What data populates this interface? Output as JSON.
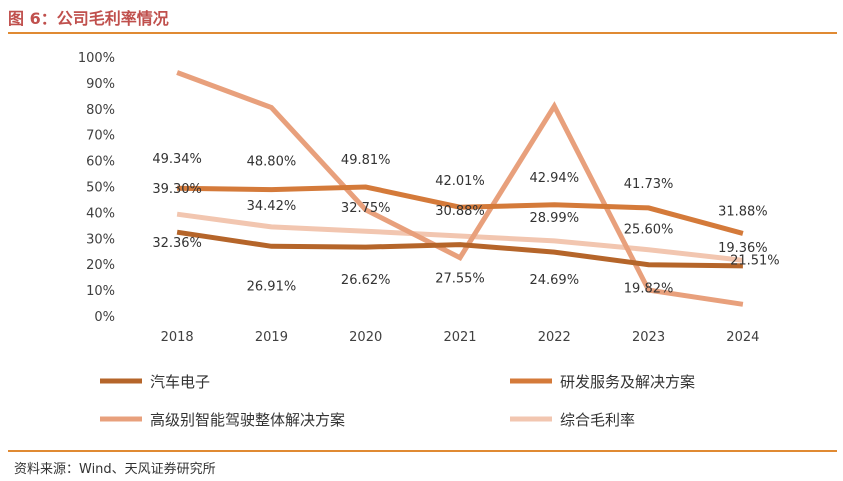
{
  "figure": {
    "title": "图 6：公司毛利率情况",
    "source": "资料来源：Wind、天风证券研究所"
  },
  "chart_data": {
    "type": "line",
    "title": "",
    "xlabel": "",
    "ylabel": "",
    "categories": [
      "2018",
      "2019",
      "2020",
      "2021",
      "2022",
      "2023",
      "2024"
    ],
    "ylim": [
      0,
      100
    ],
    "yticks": [
      "0%",
      "10%",
      "20%",
      "30%",
      "40%",
      "50%",
      "60%",
      "70%",
      "80%",
      "90%",
      "100%"
    ],
    "grid": false,
    "legend_position": "bottom",
    "series": [
      {
        "name": "汽车电子",
        "color": "#b5652a",
        "values": [
          32.36,
          26.91,
          26.62,
          27.55,
          24.69,
          19.82,
          19.36
        ],
        "labels": [
          "32.36%",
          "26.91%",
          "26.62%",
          "27.55%",
          "24.69%",
          "19.82%",
          "19.36%"
        ]
      },
      {
        "name": "研发服务及解决方案",
        "color": "#d47a3a",
        "values": [
          49.34,
          48.8,
          49.81,
          42.01,
          42.94,
          41.73,
          31.88
        ],
        "labels": [
          "49.34%",
          "48.80%",
          "49.81%",
          "42.01%",
          "42.94%",
          "41.73%",
          "31.88%"
        ]
      },
      {
        "name": "高级别智能驾驶整体解决方案",
        "color": "#e8a07c",
        "values": [
          94.0,
          80.5,
          41.0,
          22.5,
          81.0,
          10.0,
          4.5
        ],
        "labels": []
      },
      {
        "name": "综合毛利率",
        "color": "#f2c6b0",
        "values": [
          39.3,
          34.42,
          32.75,
          30.88,
          28.99,
          25.6,
          21.51
        ],
        "labels": [
          "39.30%",
          "34.42%",
          "32.75%",
          "30.88%",
          "28.99%",
          "25.60%",
          "21.51%"
        ]
      }
    ]
  }
}
